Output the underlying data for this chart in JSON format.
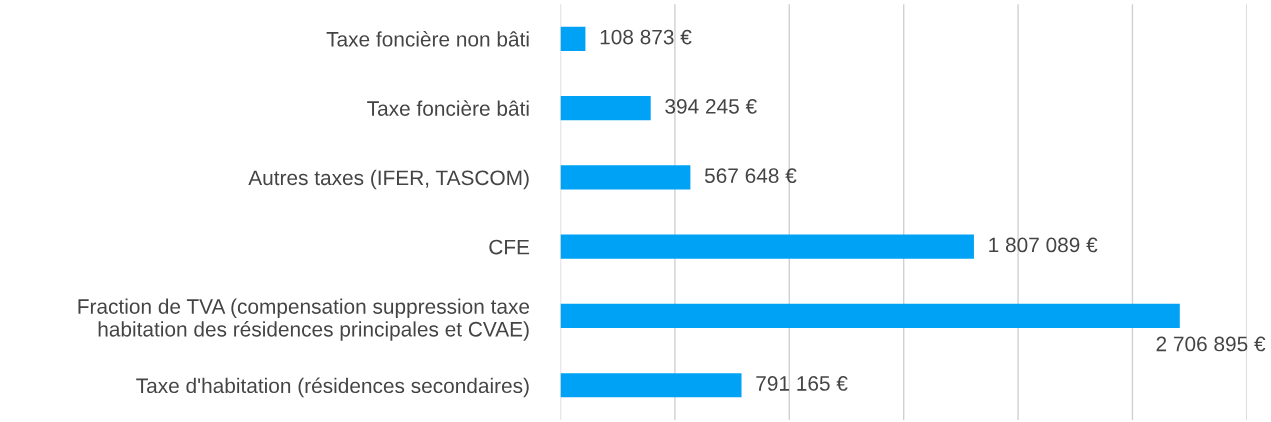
{
  "chart_data": {
    "type": "bar",
    "orientation": "horizontal",
    "categories": [
      "Taxe foncière non bâti",
      "Taxe foncière bâti",
      "Autres taxes (IFER, TASCOM)",
      "CFE",
      "Fraction de TVA (compensation suppression taxe\nhabitation des résidences principales et CVAE)",
      "Taxe d'habitation (résidences secondaires)"
    ],
    "values": [
      108873,
      394245,
      567648,
      1807089,
      2706895,
      791165
    ],
    "value_labels": [
      "108 873 €",
      "394 245 €",
      "567 648 €",
      "1 807 089 €",
      "2 706 895 €",
      "791 165 €"
    ],
    "color": "#00a2f5",
    "xlim": [
      0,
      3000000
    ],
    "xticks": [
      {
        "value": 0,
        "label": null
      },
      {
        "value": 500000,
        "label": null
      },
      {
        "value": 1000000,
        "label": null
      },
      {
        "value": 1500000,
        "label": null
      },
      {
        "value": 2000000,
        "label": null
      },
      {
        "value": 2500000,
        "label": null
      },
      {
        "value": 3000000,
        "label": null
      }
    ],
    "grid": "x",
    "tick_labels": "y"
  }
}
